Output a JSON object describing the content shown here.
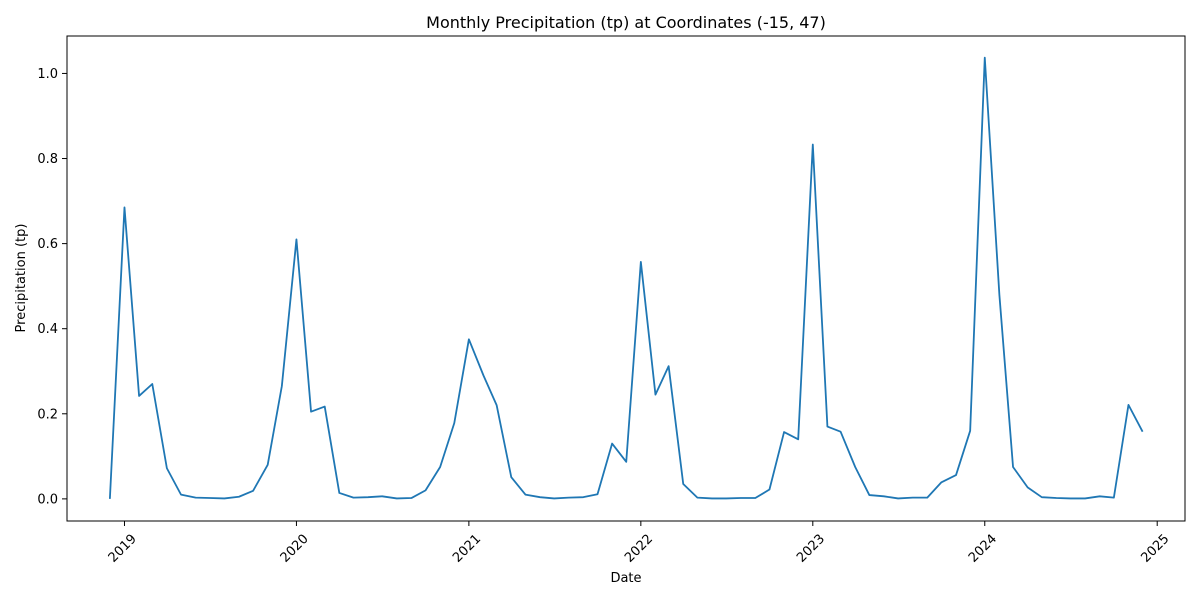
{
  "chart_data": {
    "type": "line",
    "title": "Monthly Precipitation (tp) at Coordinates (-15, 47)",
    "xlabel": "Date",
    "ylabel": "Precipitation (tp)",
    "grid": false,
    "xlim": [
      "2018-09-01",
      "2025-03-01"
    ],
    "ylim": [
      -0.052,
      1.088
    ],
    "x_ticks": [
      "2019",
      "2020",
      "2021",
      "2022",
      "2023",
      "2024",
      "2025"
    ],
    "x_tick_dates": [
      "2019-01-01",
      "2020-01-01",
      "2021-01-01",
      "2022-01-01",
      "2023-01-01",
      "2024-01-01",
      "2025-01-01"
    ],
    "y_ticks": [
      "0.0",
      "0.2",
      "0.4",
      "0.6",
      "0.8",
      "1.0"
    ],
    "y_tick_values": [
      0.0,
      0.2,
      0.4,
      0.6,
      0.8,
      1.0
    ],
    "series": [
      {
        "color": "#1f77b4",
        "x": [
          "2018-12",
          "2019-01",
          "2019-02",
          "2019-03",
          "2019-04",
          "2019-05",
          "2019-06",
          "2019-07",
          "2019-08",
          "2019-09",
          "2019-10",
          "2019-11",
          "2019-12",
          "2020-01",
          "2020-02",
          "2020-03",
          "2020-04",
          "2020-05",
          "2020-06",
          "2020-07",
          "2020-08",
          "2020-09",
          "2020-10",
          "2020-11",
          "2020-12",
          "2021-01",
          "2021-02",
          "2021-03",
          "2021-04",
          "2021-05",
          "2021-06",
          "2021-07",
          "2021-08",
          "2021-09",
          "2021-10",
          "2021-11",
          "2021-12",
          "2022-01",
          "2022-02",
          "2022-03",
          "2022-04",
          "2022-05",
          "2022-06",
          "2022-07",
          "2022-08",
          "2022-09",
          "2022-10",
          "2022-11",
          "2022-12",
          "2023-01",
          "2023-02",
          "2023-03",
          "2023-04",
          "2023-05",
          "2023-06",
          "2023-07",
          "2023-08",
          "2023-09",
          "2023-10",
          "2023-11",
          "2023-12",
          "2024-01",
          "2024-02",
          "2024-03",
          "2024-04",
          "2024-05",
          "2024-06",
          "2024-07",
          "2024-08",
          "2024-09",
          "2024-10",
          "2024-11",
          "2024-12"
        ],
        "values": [
          0.0,
          0.685,
          0.242,
          0.27,
          0.072,
          0.01,
          0.003,
          0.002,
          0.001,
          0.005,
          0.019,
          0.08,
          0.265,
          0.61,
          0.205,
          0.217,
          0.014,
          0.003,
          0.004,
          0.006,
          0.001,
          0.002,
          0.02,
          0.075,
          0.178,
          0.375,
          0.29,
          0.22,
          0.051,
          0.01,
          0.004,
          0.001,
          0.003,
          0.004,
          0.011,
          0.13,
          0.087,
          0.557,
          0.245,
          0.312,
          0.035,
          0.003,
          0.001,
          0.001,
          0.002,
          0.002,
          0.022,
          0.157,
          0.14,
          0.833,
          0.17,
          0.158,
          0.075,
          0.009,
          0.006,
          0.001,
          0.003,
          0.003,
          0.039,
          0.056,
          0.16,
          1.037,
          0.48,
          0.075,
          0.027,
          0.004,
          0.002,
          0.001,
          0.001,
          0.006,
          0.003,
          0.221,
          0.158
        ]
      }
    ]
  }
}
